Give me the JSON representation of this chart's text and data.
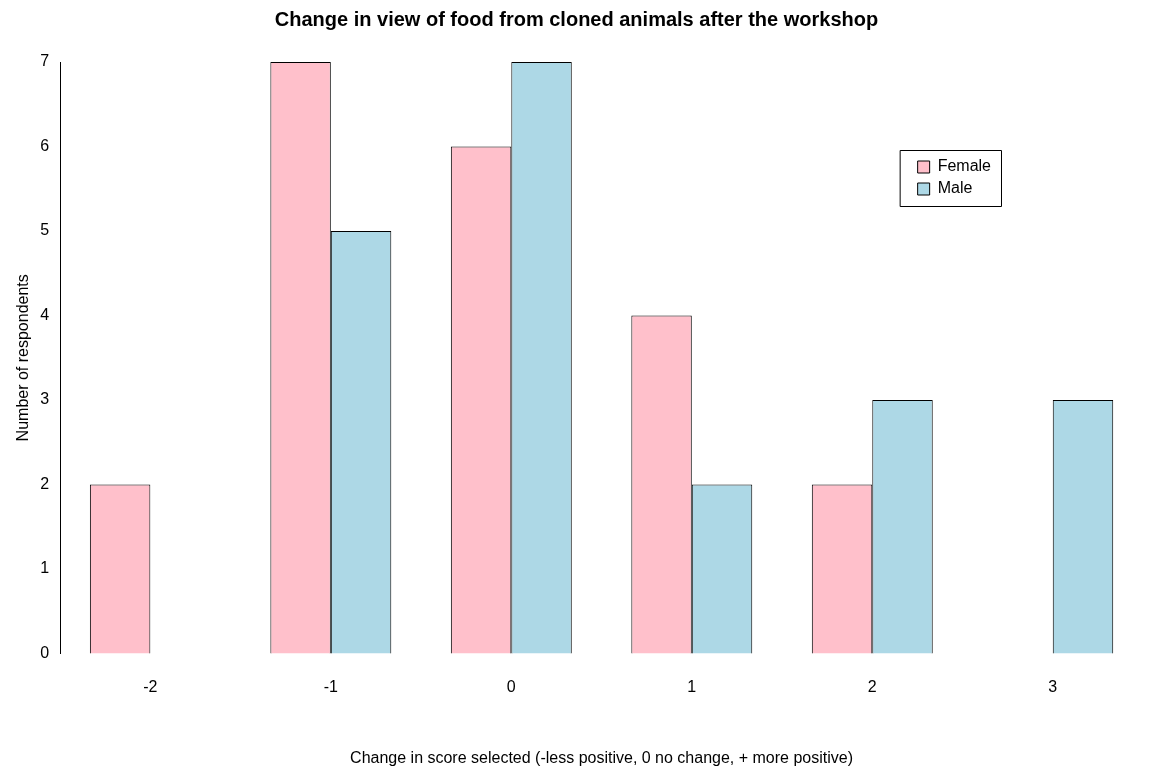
{
  "chart_data": {
    "type": "bar",
    "title": "Change in view of food from cloned animals after the workshop",
    "xlabel": "Change in score selected (-less positive, 0 no change, + more positive)",
    "ylabel": "Number of respondents",
    "categories": [
      "-2",
      "-1",
      "0",
      "1",
      "2",
      "3"
    ],
    "series": [
      {
        "name": "Female",
        "color": "#ffc0cb",
        "values": [
          2,
          7,
          6,
          4,
          2,
          0
        ]
      },
      {
        "name": "Male",
        "color": "#add8e6",
        "values": [
          0,
          5,
          7,
          2,
          3,
          3
        ]
      }
    ],
    "ylim": [
      0,
      7
    ],
    "yticks": [
      0,
      1,
      2,
      3,
      4,
      5,
      6,
      7
    ],
    "grid": false,
    "legend": "top right"
  }
}
